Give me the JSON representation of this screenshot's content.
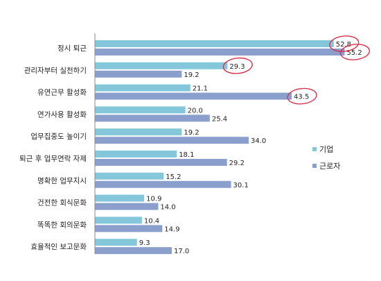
{
  "chart_data": {
    "type": "bar",
    "orientation": "horizontal",
    "categories": [
      "정시 퇴근",
      "관리자부터 실천하기",
      "유연근무 활성화",
      "연가사용 활성화",
      "업무집중도 높이기",
      "퇴근 후 업무연락 자제",
      "명확한 업무지시",
      "건전한 회식문화",
      "똑똑한 회의문화",
      "효율적인 보고문화"
    ],
    "series": [
      {
        "name": "기업",
        "color": "#84c7db",
        "values": [
          52.8,
          29.3,
          21.1,
          20.0,
          19.2,
          18.1,
          15.2,
          10.9,
          10.4,
          9.3
        ],
        "labels": [
          "52.8",
          "29.3",
          "21.1",
          "20.0",
          "19.2",
          "18.1",
          "15.2",
          "10.9",
          "10.4",
          "9.3"
        ]
      },
      {
        "name": "근로자",
        "color": "#8b9fcd",
        "values": [
          55.2,
          19.2,
          43.5,
          25.4,
          34.0,
          29.2,
          30.1,
          14.0,
          14.9,
          17.0
        ],
        "labels": [
          "55.2",
          "19.2",
          "43.5",
          "25.4",
          "34.0",
          "29.2",
          "30.1",
          "14.0",
          "14.9",
          "17.0"
        ]
      }
    ],
    "xlim": [
      0,
      60
    ],
    "grid": false,
    "legend_position": "right",
    "highlighted": [
      {
        "series": 0,
        "category": 0
      },
      {
        "series": 1,
        "category": 0
      },
      {
        "series": 0,
        "category": 1
      },
      {
        "series": 1,
        "category": 2
      }
    ],
    "highlight_color": "#d6324a"
  }
}
